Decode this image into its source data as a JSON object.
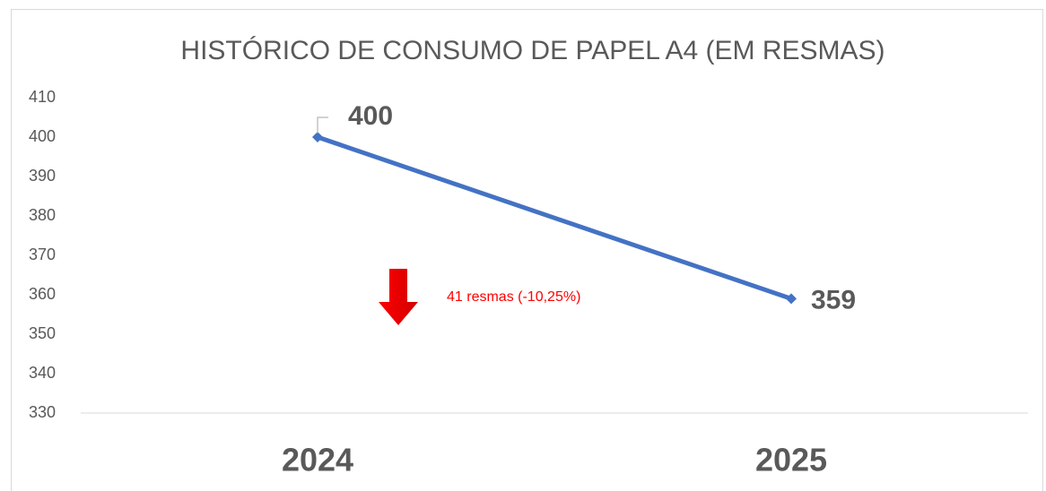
{
  "chart_data": {
    "type": "line",
    "title": "HISTÓRICO DE CONSUMO DE PAPEL A4 (EM RESMAS)",
    "categories": [
      "2024",
      "2025"
    ],
    "values": [
      400,
      359
    ],
    "color": "#4472c4",
    "ylim": [
      330,
      410
    ],
    "yticks": [
      330,
      340,
      350,
      360,
      370,
      380,
      390,
      400,
      410
    ],
    "grid": false,
    "annotations": [
      "41 resmas (-10,25%)"
    ],
    "annotation_color": "#ff0000"
  }
}
